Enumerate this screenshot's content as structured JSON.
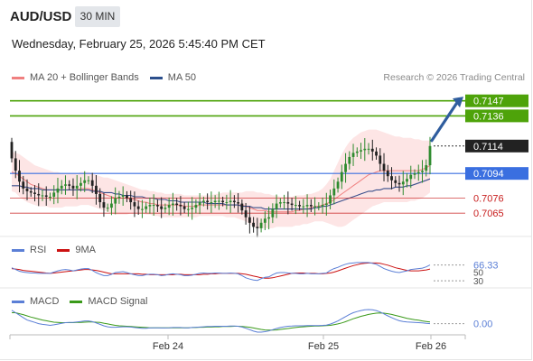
{
  "header": {
    "pair": "AUD/USD",
    "timeframe": "30 MIN",
    "datetime": "Wednesday, February 25, 2026 5:45:40 PM CET"
  },
  "legends": {
    "main": [
      {
        "label": "MA 20 + Bollinger Bands",
        "color": "#f08080"
      },
      {
        "label": "MA 50",
        "color": "#2c4f8c"
      }
    ],
    "rsi": [
      {
        "label": "RSI",
        "color": "#5b7fd6"
      },
      {
        "label": "9MA",
        "color": "#cc1111"
      }
    ],
    "macd": [
      {
        "label": "MACD",
        "color": "#5b7fd6"
      },
      {
        "label": "MACD Signal",
        "color": "#3a9a1a"
      }
    ]
  },
  "credit": "Research © 2026 Trading Central",
  "colors": {
    "up": "#2e8b2e",
    "down": "#222222",
    "band": "#fde0e0",
    "ma20": "#f08080",
    "ma50": "#3a4f8c",
    "target": "#4ea30a",
    "pivot": "#3a6fe0",
    "support": "#c81e1e",
    "arrow": "#2f5d9e",
    "last": "#222222"
  },
  "chart_data": [
    {
      "type": "candlestick",
      "panel": "price",
      "ylim": [
        0.7048,
        0.7158
      ],
      "x_ticks": [
        "Feb 24",
        "Feb 25",
        "Feb 26"
      ],
      "levels": [
        {
          "value": 0.7147,
          "label": "0.7147",
          "kind": "target"
        },
        {
          "value": 0.7136,
          "label": "0.7136",
          "kind": "target"
        },
        {
          "value": 0.7114,
          "label": "0.7114",
          "kind": "last"
        },
        {
          "value": 0.7094,
          "label": "0.7094",
          "kind": "pivot"
        },
        {
          "value": 0.7076,
          "label": "0.7076",
          "kind": "support"
        },
        {
          "value": 0.7065,
          "label": "0.7065",
          "kind": "support"
        }
      ],
      "close": [
        0.7105,
        0.7096,
        0.7088,
        0.7083,
        0.7081,
        0.708,
        0.7079,
        0.7078,
        0.7078,
        0.7077,
        0.7077,
        0.708,
        0.7083,
        0.7085,
        0.7086,
        0.7085,
        0.7083,
        0.7085,
        0.7087,
        0.7089,
        0.7089,
        0.7085,
        0.7079,
        0.7073,
        0.7069,
        0.7069,
        0.7072,
        0.7076,
        0.7077,
        0.7078,
        0.7076,
        0.7073,
        0.707,
        0.7068,
        0.7068,
        0.707,
        0.7071,
        0.7071,
        0.707,
        0.7068,
        0.7069,
        0.7071,
        0.7072,
        0.7071,
        0.707,
        0.7068,
        0.7068,
        0.7069,
        0.7071,
        0.7073,
        0.7074,
        0.7073,
        0.7073,
        0.7074,
        0.7074,
        0.7073,
        0.7073,
        0.7074,
        0.7073,
        0.7072,
        0.7067,
        0.7062,
        0.7058,
        0.7055,
        0.7054,
        0.7058,
        0.7061,
        0.7062,
        0.7068,
        0.7072,
        0.7073,
        0.7073,
        0.7072,
        0.7071,
        0.7071,
        0.707,
        0.707,
        0.7071,
        0.707,
        0.707,
        0.707,
        0.7071,
        0.7072,
        0.7078,
        0.7083,
        0.7088,
        0.7095,
        0.7101,
        0.7106,
        0.7109,
        0.711,
        0.7111,
        0.7112,
        0.7112,
        0.711,
        0.7107,
        0.7101,
        0.7096,
        0.7092,
        0.7089,
        0.7087,
        0.7086,
        0.7088,
        0.709,
        0.7093,
        0.7094,
        0.7095,
        0.7096,
        0.71,
        0.7114
      ],
      "ma20": [
        0.7095,
        0.7094,
        0.7092,
        0.709,
        0.7088,
        0.7086,
        0.7085,
        0.7084,
        0.7083,
        0.7082,
        0.7082,
        0.7082,
        0.7082,
        0.7082,
        0.7082,
        0.7082,
        0.7082,
        0.7082,
        0.7083,
        0.7083,
        0.7083,
        0.7082,
        0.7081,
        0.708,
        0.7079,
        0.7078,
        0.7077,
        0.7076,
        0.7076,
        0.7076,
        0.7076,
        0.7075,
        0.7075,
        0.7074,
        0.7073,
        0.7073,
        0.7072,
        0.7072,
        0.7071,
        0.7071,
        0.7071,
        0.7071,
        0.7071,
        0.7071,
        0.7071,
        0.707,
        0.707,
        0.707,
        0.707,
        0.7071,
        0.7071,
        0.7071,
        0.7071,
        0.7071,
        0.7071,
        0.7071,
        0.7071,
        0.7071,
        0.7071,
        0.7071,
        0.7071,
        0.707,
        0.7069,
        0.7068,
        0.7067,
        0.7067,
        0.7067,
        0.7066,
        0.7066,
        0.7066,
        0.7066,
        0.7066,
        0.7066,
        0.7066,
        0.7067,
        0.7067,
        0.7068,
        0.7068,
        0.7069,
        0.707,
        0.707,
        0.7071,
        0.7072,
        0.7073,
        0.7075,
        0.7077,
        0.7079,
        0.7081,
        0.7083,
        0.7085,
        0.7087,
        0.7089,
        0.7091,
        0.7093,
        0.7094,
        0.7095,
        0.7096,
        0.7096,
        0.7096,
        0.7096,
        0.7096,
        0.7096,
        0.7096,
        0.7096,
        0.7096,
        0.7096,
        0.7096,
        0.7097,
        0.7098,
        0.71
      ],
      "bb_upper": [
        0.711,
        0.7109,
        0.7108,
        0.7106,
        0.7104,
        0.7102,
        0.71,
        0.7099,
        0.7098,
        0.7097,
        0.7096,
        0.7095,
        0.7095,
        0.7094,
        0.7094,
        0.7094,
        0.7094,
        0.7094,
        0.7095,
        0.7095,
        0.7095,
        0.7094,
        0.7093,
        0.7092,
        0.7091,
        0.7091,
        0.709,
        0.7089,
        0.7088,
        0.7087,
        0.7086,
        0.7085,
        0.7084,
        0.7083,
        0.7082,
        0.7082,
        0.7081,
        0.7081,
        0.708,
        0.708,
        0.7079,
        0.7079,
        0.7079,
        0.7079,
        0.7079,
        0.7078,
        0.7078,
        0.7078,
        0.7078,
        0.7078,
        0.7078,
        0.7078,
        0.7078,
        0.7079,
        0.7079,
        0.708,
        0.708,
        0.708,
        0.708,
        0.708,
        0.708,
        0.7081,
        0.7081,
        0.7081,
        0.708,
        0.708,
        0.7079,
        0.7079,
        0.7078,
        0.7078,
        0.7077,
        0.7077,
        0.7077,
        0.7077,
        0.7078,
        0.7078,
        0.7078,
        0.7079,
        0.7079,
        0.708,
        0.7081,
        0.7083,
        0.7086,
        0.709,
        0.7096,
        0.7102,
        0.7108,
        0.7113,
        0.7117,
        0.712,
        0.7122,
        0.7124,
        0.7125,
        0.7126,
        0.7126,
        0.7126,
        0.7125,
        0.7124,
        0.7123,
        0.7122,
        0.7121,
        0.7121,
        0.712,
        0.712,
        0.712,
        0.7119,
        0.7119,
        0.7118,
        0.7118,
        0.7118
      ],
      "bb_lower": [
        0.7081,
        0.708,
        0.7077,
        0.7075,
        0.7073,
        0.7072,
        0.7071,
        0.707,
        0.707,
        0.707,
        0.7069,
        0.7069,
        0.7069,
        0.7069,
        0.707,
        0.707,
        0.707,
        0.707,
        0.7071,
        0.7071,
        0.7071,
        0.707,
        0.7069,
        0.7068,
        0.7067,
        0.7066,
        0.7065,
        0.7064,
        0.7064,
        0.7064,
        0.7064,
        0.7065,
        0.7065,
        0.7065,
        0.7065,
        0.7064,
        0.7064,
        0.7063,
        0.7063,
        0.7062,
        0.7062,
        0.7062,
        0.7062,
        0.7062,
        0.7062,
        0.7062,
        0.7062,
        0.7062,
        0.7062,
        0.7063,
        0.7063,
        0.7063,
        0.7063,
        0.7063,
        0.7063,
        0.7063,
        0.7062,
        0.7062,
        0.7062,
        0.7061,
        0.706,
        0.7059,
        0.7057,
        0.7055,
        0.7054,
        0.7054,
        0.7054,
        0.7054,
        0.7054,
        0.7055,
        0.7055,
        0.7055,
        0.7055,
        0.7055,
        0.7056,
        0.7056,
        0.7057,
        0.7057,
        0.7058,
        0.7059,
        0.7059,
        0.7059,
        0.7058,
        0.7057,
        0.7056,
        0.7055,
        0.7055,
        0.7056,
        0.7058,
        0.706,
        0.7062,
        0.7064,
        0.7066,
        0.7068,
        0.707,
        0.7071,
        0.7072,
        0.7073,
        0.7073,
        0.7073,
        0.7073,
        0.7073,
        0.7073,
        0.7073,
        0.7074,
        0.7074,
        0.7075,
        0.7076,
        0.7078,
        0.708
      ],
      "ma50": [
        0.7085,
        0.7085,
        0.7085,
        0.7084,
        0.7084,
        0.7083,
        0.7083,
        0.7083,
        0.7082,
        0.7082,
        0.7082,
        0.7082,
        0.7082,
        0.7082,
        0.7082,
        0.7082,
        0.7082,
        0.7082,
        0.7082,
        0.7082,
        0.7082,
        0.7081,
        0.7081,
        0.7081,
        0.708,
        0.708,
        0.708,
        0.7079,
        0.7079,
        0.7078,
        0.7078,
        0.7078,
        0.7077,
        0.7077,
        0.7077,
        0.7076,
        0.7076,
        0.7076,
        0.7075,
        0.7075,
        0.7075,
        0.7074,
        0.7074,
        0.7074,
        0.7073,
        0.7073,
        0.7073,
        0.7073,
        0.7073,
        0.7073,
        0.7073,
        0.7072,
        0.7072,
        0.7072,
        0.7072,
        0.7072,
        0.7071,
        0.7071,
        0.7071,
        0.7071,
        0.707,
        0.707,
        0.707,
        0.7069,
        0.7069,
        0.7069,
        0.7068,
        0.7068,
        0.7068,
        0.7068,
        0.7068,
        0.7068,
        0.7068,
        0.7068,
        0.7068,
        0.7068,
        0.7068,
        0.7068,
        0.7068,
        0.7069,
        0.7069,
        0.707,
        0.707,
        0.7071,
        0.7072,
        0.7073,
        0.7074,
        0.7075,
        0.7076,
        0.7077,
        0.7078,
        0.7079,
        0.708,
        0.7081,
        0.7081,
        0.7082,
        0.7082,
        0.7083,
        0.7083,
        0.7083,
        0.7084,
        0.7084,
        0.7084,
        0.7085,
        0.7085,
        0.7086,
        0.7087,
        0.7088,
        0.7089,
        0.709
      ]
    },
    {
      "type": "line",
      "panel": "rsi",
      "ylim": [
        20,
        80
      ],
      "ticks": [
        "30",
        "50"
      ],
      "current_label": "66.33",
      "series": [
        {
          "name": "RSI",
          "values": [
            60,
            56,
            52,
            50,
            49,
            48,
            48,
            47,
            47,
            47,
            47,
            50,
            53,
            55,
            56,
            55,
            53,
            55,
            57,
            58,
            58,
            54,
            49,
            45,
            42,
            42,
            45,
            49,
            50,
            51,
            49,
            46,
            44,
            42,
            42,
            44,
            45,
            45,
            44,
            42,
            43,
            45,
            46,
            45,
            44,
            42,
            42,
            43,
            45,
            47,
            48,
            47,
            47,
            48,
            48,
            47,
            47,
            48,
            47,
            46,
            42,
            37,
            34,
            32,
            31,
            35,
            38,
            39,
            44,
            48,
            49,
            49,
            48,
            47,
            47,
            46,
            46,
            47,
            46,
            46,
            46,
            47,
            48,
            54,
            58,
            61,
            65,
            68,
            70,
            71,
            72,
            72,
            72,
            72,
            70,
            68,
            63,
            58,
            55,
            52,
            50,
            49,
            51,
            53,
            56,
            57,
            58,
            59,
            62,
            66.33
          ]
        },
        {
          "name": "9MA",
          "values": [
            58,
            57,
            56,
            54,
            53,
            52,
            51,
            50,
            49,
            48,
            47,
            48,
            49,
            50,
            51,
            52,
            53,
            54,
            55,
            56,
            56,
            55,
            54,
            52,
            50,
            48,
            46,
            46,
            46,
            46,
            46,
            46,
            46,
            46,
            45,
            45,
            44,
            44,
            44,
            44,
            44,
            44,
            44,
            45,
            45,
            44,
            44,
            44,
            44,
            44,
            45,
            45,
            46,
            46,
            47,
            47,
            47,
            47,
            47,
            47,
            46,
            45,
            43,
            41,
            39,
            37,
            36,
            36,
            37,
            39,
            41,
            43,
            45,
            47,
            48,
            48,
            48,
            47,
            47,
            47,
            46,
            46,
            47,
            48,
            50,
            53,
            56,
            59,
            62,
            65,
            67,
            69,
            70,
            71,
            71,
            71,
            70,
            68,
            66,
            63,
            60,
            58,
            56,
            54,
            53,
            53,
            53,
            54,
            55,
            57
          ]
        }
      ]
    },
    {
      "type": "line",
      "panel": "macd",
      "current_label": "0.00",
      "series": [
        {
          "name": "MACD",
          "values": [
            6,
            5,
            4,
            3,
            2,
            1.5,
            1,
            0.5,
            0.2,
            0,
            -0.2,
            0,
            0.3,
            0.6,
            0.9,
            1,
            1,
            1.2,
            1.4,
            1.6,
            1.6,
            1.3,
            0.8,
            0.2,
            -0.4,
            -0.8,
            -1,
            -1,
            -0.9,
            -0.8,
            -0.8,
            -0.9,
            -1.1,
            -1.3,
            -1.4,
            -1.4,
            -1.3,
            -1.2,
            -1.2,
            -1.3,
            -1.3,
            -1.2,
            -1.1,
            -1.1,
            -1.1,
            -1.2,
            -1.2,
            -1.1,
            -1,
            -0.9,
            -0.8,
            -0.7,
            -0.7,
            -0.6,
            -0.6,
            -0.6,
            -0.6,
            -0.5,
            -0.5,
            -0.6,
            -0.9,
            -1.4,
            -2,
            -2.6,
            -3,
            -3,
            -2.8,
            -2.5,
            -2,
            -1.5,
            -1.1,
            -0.8,
            -0.6,
            -0.5,
            -0.4,
            -0.4,
            -0.4,
            -0.3,
            -0.3,
            -0.3,
            -0.3,
            -0.2,
            -0.1,
            0.3,
            0.9,
            1.6,
            2.5,
            3.4,
            4.3,
            5,
            5.5,
            5.9,
            6.2,
            6.3,
            6.2,
            5.9,
            5.3,
            4.5,
            3.7,
            3,
            2.3,
            1.7,
            1.4,
            1.2,
            1.1,
            1,
            0.9,
            0.8,
            0.6,
            0.5
          ]
        },
        {
          "name": "MACD Signal",
          "values": [
            5,
            5,
            4.6,
            4.2,
            3.7,
            3.2,
            2.8,
            2.4,
            2,
            1.7,
            1.4,
            1.1,
            1,
            0.9,
            0.9,
            0.9,
            0.9,
            1,
            1,
            1.1,
            1.2,
            1.2,
            1.1,
            1,
            0.7,
            0.4,
            0.1,
            -0.2,
            -0.4,
            -0.5,
            -0.6,
            -0.7,
            -0.8,
            -0.9,
            -1,
            -1.1,
            -1.2,
            -1.2,
            -1.2,
            -1.2,
            -1.2,
            -1.2,
            -1.2,
            -1.2,
            -1.2,
            -1.2,
            -1.2,
            -1.1,
            -1.1,
            -1,
            -1,
            -0.9,
            -0.9,
            -0.8,
            -0.8,
            -0.7,
            -0.7,
            -0.7,
            -0.6,
            -0.6,
            -0.7,
            -0.8,
            -1,
            -1.3,
            -1.6,
            -1.9,
            -2.1,
            -2.2,
            -2.2,
            -2.1,
            -1.9,
            -1.7,
            -1.5,
            -1.3,
            -1.1,
            -0.9,
            -0.8,
            -0.7,
            -0.6,
            -0.5,
            -0.5,
            -0.4,
            -0.3,
            -0.2,
            0.1,
            0.4,
            0.8,
            1.3,
            1.9,
            2.5,
            3,
            3.5,
            3.9,
            4.3,
            4.6,
            4.8,
            4.9,
            4.8,
            4.6,
            4.3,
            3.9,
            3.5,
            3.1,
            2.7,
            2.4,
            2.1,
            1.9,
            1.6,
            1.4,
            1.2
          ]
        }
      ]
    }
  ]
}
